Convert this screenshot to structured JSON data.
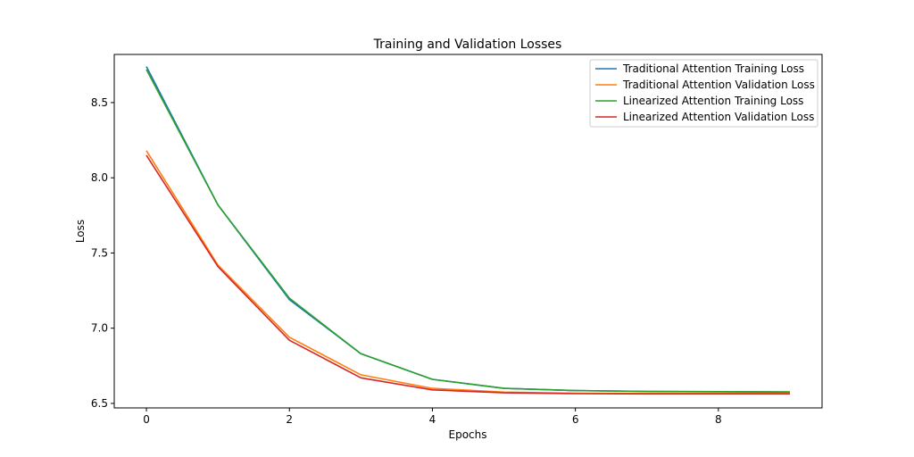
{
  "chart_data": {
    "type": "line",
    "title": "Training and Validation Losses",
    "xlabel": "Epochs",
    "ylabel": "Loss",
    "x": [
      0,
      1,
      2,
      3,
      4,
      5,
      6,
      7,
      8,
      9
    ],
    "xlim": [
      -0.45,
      9.45
    ],
    "ylim": [
      6.47,
      8.82
    ],
    "xticks": [
      0,
      2,
      4,
      6,
      8
    ],
    "xtick_labels": [
      "0",
      "2",
      "4",
      "6",
      "8"
    ],
    "yticks": [
      6.5,
      7.0,
      7.5,
      8.0,
      8.5
    ],
    "ytick_labels": [
      "6.5",
      "7.0",
      "7.5",
      "8.0",
      "8.5"
    ],
    "grid": false,
    "legend_position": "top-right",
    "series": [
      {
        "name": "Traditional Attention Training Loss",
        "color": "#1f77b4",
        "values": [
          8.74,
          7.82,
          7.19,
          6.83,
          6.66,
          6.6,
          6.585,
          6.58,
          6.578,
          6.575
        ]
      },
      {
        "name": "Traditional Attention Validation Loss",
        "color": "#ff7f0e",
        "values": [
          8.18,
          7.42,
          6.94,
          6.69,
          6.6,
          6.575,
          6.568,
          6.566,
          6.566,
          6.566
        ]
      },
      {
        "name": "Linearized Attention Training Loss",
        "color": "#2ca02c",
        "values": [
          8.72,
          7.82,
          7.2,
          6.83,
          6.66,
          6.6,
          6.585,
          6.58,
          6.578,
          6.576
        ]
      },
      {
        "name": "Linearized Attention Validation Loss",
        "color": "#d62728",
        "values": [
          8.15,
          7.41,
          6.92,
          6.67,
          6.59,
          6.57,
          6.565,
          6.563,
          6.563,
          6.563
        ]
      }
    ]
  }
}
